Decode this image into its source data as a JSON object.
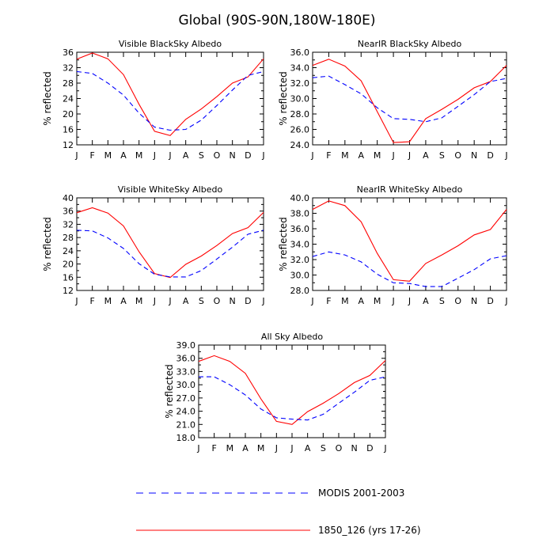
{
  "figure_title": "Global (90S-90N,180W-180E)",
  "legend": {
    "items": [
      {
        "label": "MODIS 2001-2003",
        "color": "#0000ff",
        "dash": true
      },
      {
        "label": "1850_126 (yrs 17-26)",
        "color": "#ff0000",
        "dash": false
      }
    ]
  },
  "chart_data": [
    {
      "type": "line",
      "title": "Visible BlackSky Albedo",
      "ylabel": "% reflected",
      "xlabel": "",
      "categories": [
        "J",
        "F",
        "M",
        "A",
        "M",
        "J",
        "J",
        "A",
        "S",
        "O",
        "N",
        "D",
        "J"
      ],
      "ylim": [
        12,
        36
      ],
      "yticks": [
        "12",
        "16",
        "20",
        "24",
        "28",
        "32",
        "36"
      ],
      "series": [
        {
          "name": "1850_126 (yrs 17-26)",
          "color": "#ff0000",
          "dash": false,
          "values": [
            34.2,
            35.8,
            34.3,
            30.2,
            22.5,
            15.5,
            14.4,
            18.6,
            21.3,
            24.5,
            28.0,
            29.6,
            34.3
          ]
        },
        {
          "name": "MODIS 2001-2003",
          "color": "#0000ff",
          "dash": true,
          "values": [
            31.0,
            30.5,
            28.0,
            24.9,
            20.2,
            16.6,
            15.8,
            16.0,
            18.4,
            22.2,
            26.2,
            30.0,
            31.0
          ]
        }
      ]
    },
    {
      "type": "line",
      "title": "NearIR BlackSky Albedo",
      "ylabel": "% reflected",
      "xlabel": "",
      "categories": [
        "J",
        "F",
        "M",
        "A",
        "M",
        "J",
        "J",
        "A",
        "S",
        "O",
        "N",
        "D",
        "J"
      ],
      "ylim": [
        24,
        36
      ],
      "yticks": [
        "24.0",
        "26.0",
        "28.0",
        "30.0",
        "32.0",
        "34.0",
        "36.0"
      ],
      "series": [
        {
          "name": "1850_126 (yrs 17-26)",
          "color": "#ff0000",
          "dash": false,
          "values": [
            34.3,
            35.1,
            34.2,
            32.3,
            28.3,
            24.3,
            24.4,
            27.4,
            28.6,
            29.9,
            31.4,
            32.2,
            34.3
          ]
        },
        {
          "name": "MODIS 2001-2003",
          "color": "#0000ff",
          "dash": true,
          "values": [
            32.7,
            32.9,
            31.8,
            30.6,
            28.8,
            27.4,
            27.3,
            27.0,
            27.5,
            29.0,
            30.5,
            32.2,
            32.6
          ]
        }
      ]
    },
    {
      "type": "line",
      "title": "Visible WhiteSky Albedo",
      "ylabel": "% reflected",
      "xlabel": "",
      "categories": [
        "J",
        "F",
        "M",
        "A",
        "M",
        "J",
        "J",
        "A",
        "S",
        "O",
        "N",
        "D",
        "J"
      ],
      "ylim": [
        12,
        40
      ],
      "yticks": [
        "12",
        "16",
        "20",
        "24",
        "28",
        "32",
        "36",
        "40"
      ],
      "series": [
        {
          "name": "1850_126 (yrs 17-26)",
          "color": "#ff0000",
          "dash": false,
          "values": [
            35.5,
            37.0,
            35.4,
            31.5,
            23.7,
            17.1,
            15.9,
            19.9,
            22.4,
            25.6,
            29.2,
            31.0,
            35.6
          ]
        },
        {
          "name": "MODIS 2001-2003",
          "color": "#0000ff",
          "dash": true,
          "values": [
            30.2,
            30.0,
            27.9,
            24.7,
            20.1,
            16.9,
            16.1,
            16.1,
            18.0,
            21.5,
            25.1,
            29.0,
            30.2
          ]
        }
      ]
    },
    {
      "type": "line",
      "title": "NearIR WhiteSky Albedo",
      "ylabel": "% reflected",
      "xlabel": "",
      "categories": [
        "J",
        "F",
        "M",
        "A",
        "M",
        "J",
        "J",
        "A",
        "S",
        "O",
        "N",
        "D",
        "J"
      ],
      "ylim": [
        28,
        40
      ],
      "yticks": [
        "28.0",
        "30.0",
        "32.0",
        "34.0",
        "36.0",
        "38.0",
        "40.0"
      ],
      "series": [
        {
          "name": "1850_126 (yrs 17-26)",
          "color": "#ff0000",
          "dash": false,
          "values": [
            38.5,
            39.6,
            39.0,
            36.9,
            32.8,
            29.4,
            29.2,
            31.5,
            32.6,
            33.8,
            35.2,
            35.9,
            38.5
          ]
        },
        {
          "name": "MODIS 2001-2003",
          "color": "#0000ff",
          "dash": true,
          "values": [
            32.4,
            33.0,
            32.6,
            31.7,
            30.1,
            29.0,
            28.9,
            28.5,
            28.5,
            29.6,
            30.7,
            32.1,
            32.5
          ]
        }
      ]
    },
    {
      "type": "line",
      "title": "All Sky Albedo",
      "ylabel": "% reflected",
      "xlabel": "",
      "categories": [
        "J",
        "F",
        "M",
        "A",
        "M",
        "J",
        "J",
        "A",
        "S",
        "O",
        "N",
        "D",
        "J"
      ],
      "ylim": [
        18,
        39
      ],
      "yticks": [
        "18.0",
        "21.0",
        "24.0",
        "27.0",
        "30.0",
        "33.0",
        "36.0",
        "39.0"
      ],
      "series": [
        {
          "name": "1850_126 (yrs 17-26)",
          "color": "#ff0000",
          "dash": false,
          "values": [
            35.3,
            36.6,
            35.3,
            32.6,
            26.8,
            21.7,
            21.0,
            23.9,
            25.8,
            28.0,
            30.5,
            32.1,
            35.5
          ]
        },
        {
          "name": "MODIS 2001-2003",
          "color": "#0000ff",
          "dash": true,
          "values": [
            31.8,
            31.8,
            30.0,
            27.7,
            24.5,
            22.5,
            22.2,
            22.0,
            23.3,
            25.8,
            28.3,
            31.0,
            31.8
          ]
        }
      ]
    }
  ]
}
